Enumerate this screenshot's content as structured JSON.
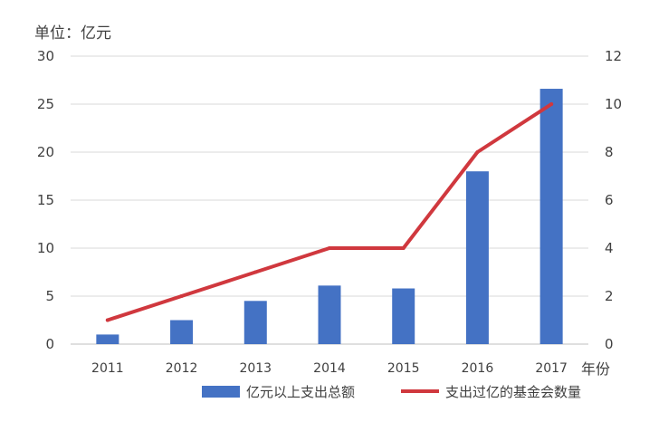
{
  "chart_data": {
    "type": "bar",
    "unit_label": "单位：亿元",
    "xlabel": "年份",
    "categories": [
      "2011",
      "2012",
      "2013",
      "2014",
      "2015",
      "2016",
      "2017"
    ],
    "series": [
      {
        "name": "亿元以上支出总额",
        "type": "bar",
        "axis": "left",
        "color": "#4472C4",
        "values": [
          1.0,
          2.5,
          4.5,
          6.1,
          5.8,
          18.0,
          26.6
        ]
      },
      {
        "name": "支出过亿的基金会数量",
        "type": "line",
        "axis": "right",
        "color": "#D0383E",
        "values": [
          1,
          2,
          3,
          4,
          4,
          8,
          10
        ]
      }
    ],
    "y_left": {
      "min": 0,
      "max": 30,
      "ticks": [
        "0",
        "5",
        "10",
        "15",
        "20",
        "25",
        "30"
      ]
    },
    "y_right": {
      "min": 0,
      "max": 12,
      "ticks": [
        "0",
        "2",
        "4",
        "6",
        "8",
        "10",
        "12"
      ]
    },
    "grid": true,
    "legend_position": "bottom"
  }
}
